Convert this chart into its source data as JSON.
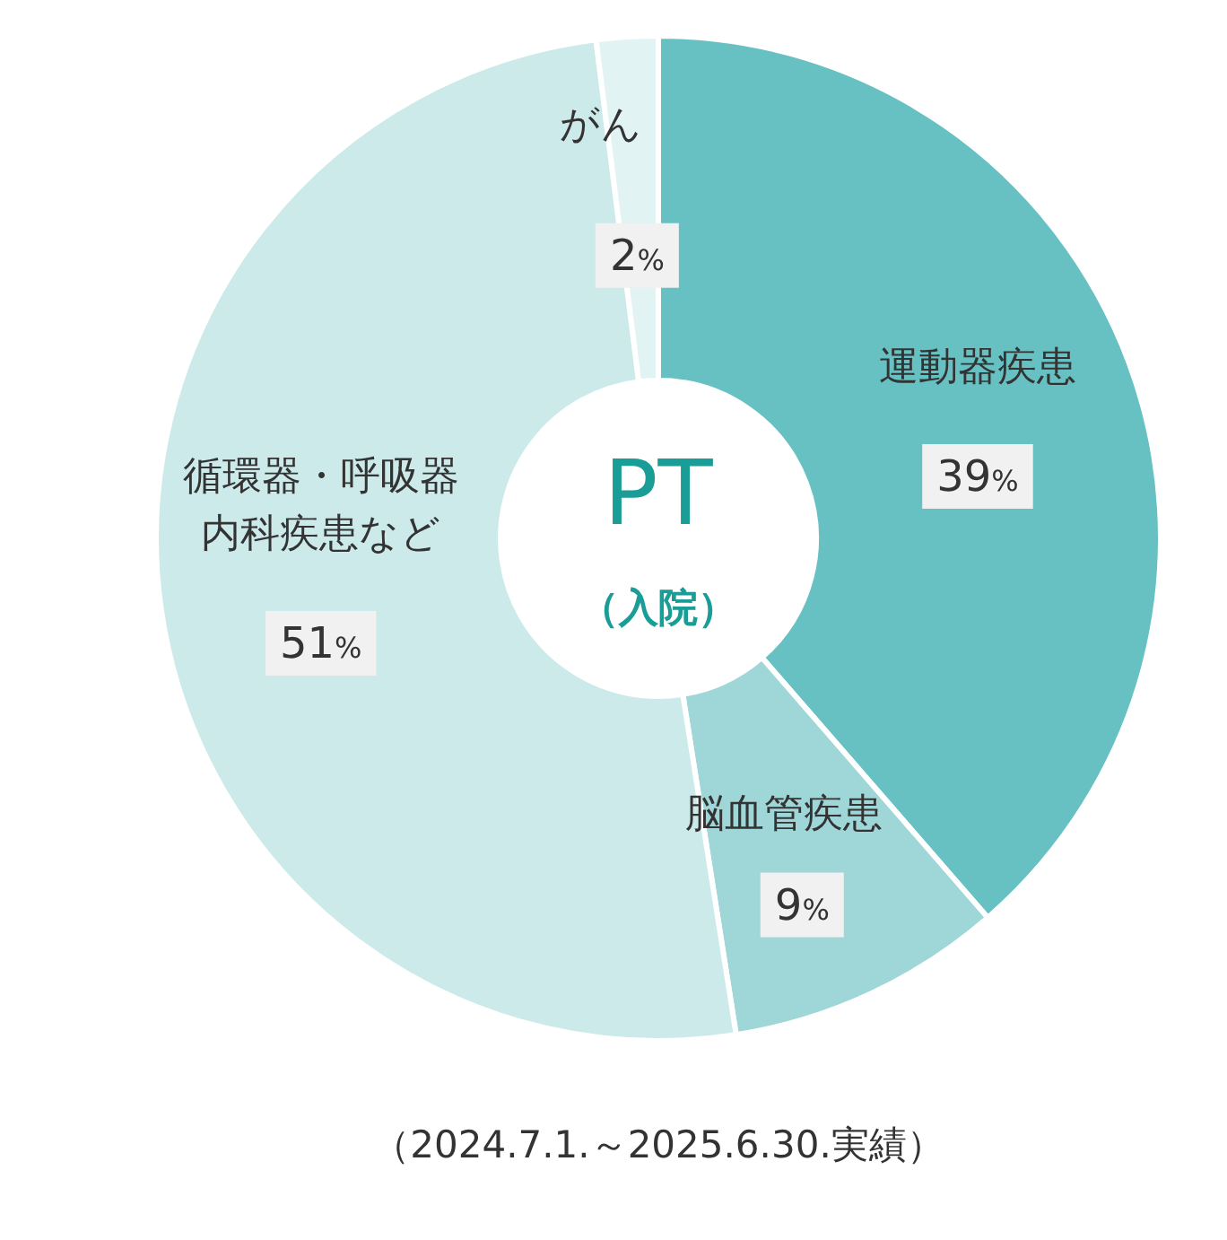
{
  "chart_data": {
    "type": "donut",
    "title": "PT",
    "subtitle": "（入院）",
    "categories": [
      "運動器疾患",
      "脳血管疾患",
      "循環器・呼吸器内科疾患など",
      "がん"
    ],
    "values": [
      39,
      9,
      51,
      2
    ],
    "colors": [
      "#67c1c3",
      "#9fd7d8",
      "#cdeaeb",
      "#e2f3f3"
    ],
    "value_labels": [
      "39%",
      "9%",
      "51%",
      "2%"
    ],
    "annotations": [
      "（2024.7.1.～2025.6.30.実績）"
    ]
  }
}
